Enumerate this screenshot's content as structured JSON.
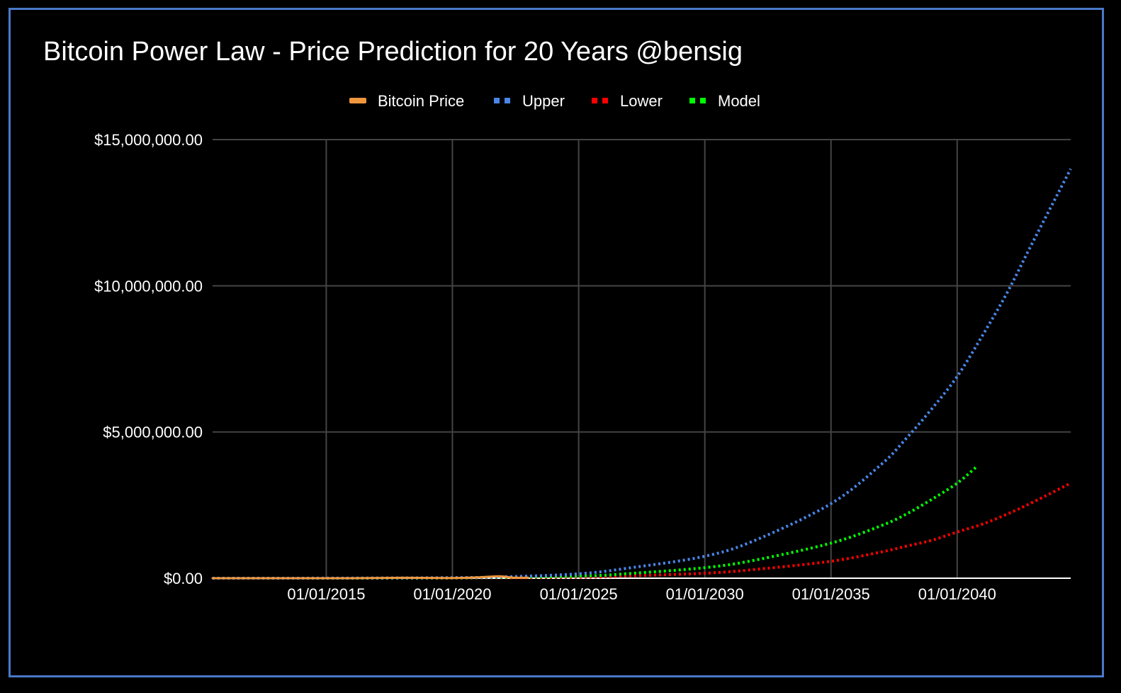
{
  "chart_data": {
    "type": "line",
    "title": "Bitcoin Power Law - Price Prediction for 20 Years @bensig",
    "xlabel": "",
    "ylabel": "",
    "legend_position": "top",
    "grid": true,
    "ylim": [
      0,
      15000000
    ],
    "xlim": [
      "2010-07-01",
      "2044-07-01"
    ],
    "y_ticks": [
      {
        "value": 0,
        "label": "$0.00"
      },
      {
        "value": 5000000,
        "label": "$5,000,000.00"
      },
      {
        "value": 10000000,
        "label": "$10,000,000.00"
      },
      {
        "value": 15000000,
        "label": "$15,000,000.00"
      }
    ],
    "x_ticks": [
      {
        "value": "2015-01-01",
        "label": "01/01/2015"
      },
      {
        "value": "2020-01-01",
        "label": "01/01/2020"
      },
      {
        "value": "2025-01-01",
        "label": "01/01/2025"
      },
      {
        "value": "2030-01-01",
        "label": "01/01/2030"
      },
      {
        "value": "2035-01-01",
        "label": "01/01/2035"
      },
      {
        "value": "2040-01-01",
        "label": "01/01/2040"
      }
    ],
    "series": [
      {
        "name": "Bitcoin Price",
        "color": "#f0963c",
        "style": "solid",
        "x": [
          "2010-07-01",
          "2013-01-01",
          "2016-01-01",
          "2018-01-01",
          "2020-01-01",
          "2021-01-01",
          "2021-11-01",
          "2022-06-01",
          "2023-01-01"
        ],
        "values": [
          0,
          13,
          430,
          14000,
          7200,
          29000,
          67000,
          20000,
          16500
        ]
      },
      {
        "name": "Upper",
        "color": "#4a86e8",
        "style": "dotted",
        "x": [
          "2010-07-01",
          "2015-01-01",
          "2020-01-01",
          "2022-01-01",
          "2025-01-01",
          "2027-01-01",
          "2030-01-01",
          "2032-01-01",
          "2035-01-01",
          "2037-01-01",
          "2038-01-01",
          "2039-01-01",
          "2040-01-01",
          "2041-01-01",
          "2042-01-01",
          "2043-01-01",
          "2044-07-01"
        ],
        "values": [
          0,
          2000,
          20000,
          45000,
          150000,
          350000,
          750000,
          1300000,
          2550000,
          3900000,
          4800000,
          5800000,
          6900000,
          8300000,
          9800000,
          11500000,
          14000000
        ]
      },
      {
        "name": "Lower",
        "color": "#ff0000",
        "style": "dotted",
        "x": [
          "2010-07-01",
          "2015-01-01",
          "2020-01-01",
          "2025-01-01",
          "2027-01-01",
          "2030-01-01",
          "2032-01-01",
          "2035-01-01",
          "2037-01-01",
          "2038-01-01",
          "2039-01-01",
          "2040-01-01",
          "2041-01-01",
          "2042-01-01",
          "2043-01-01",
          "2044-07-01"
        ],
        "values": [
          0,
          500,
          5000,
          35000,
          80000,
          170000,
          300000,
          580000,
          900000,
          1100000,
          1300000,
          1580000,
          1850000,
          2200000,
          2600000,
          3250000
        ]
      },
      {
        "name": "Model",
        "color": "#00ff00",
        "style": "dotted",
        "x": [
          "2010-07-01",
          "2015-01-01",
          "2020-01-01",
          "2025-01-01",
          "2027-01-01",
          "2030-01-01",
          "2032-01-01",
          "2035-01-01",
          "2037-01-01",
          "2038-01-01",
          "2039-01-01",
          "2040-01-01",
          "2040-10-01"
        ],
        "values": [
          0,
          1000,
          10000,
          70000,
          160000,
          360000,
          620000,
          1200000,
          1800000,
          2200000,
          2700000,
          3250000,
          3800000
        ]
      }
    ]
  }
}
